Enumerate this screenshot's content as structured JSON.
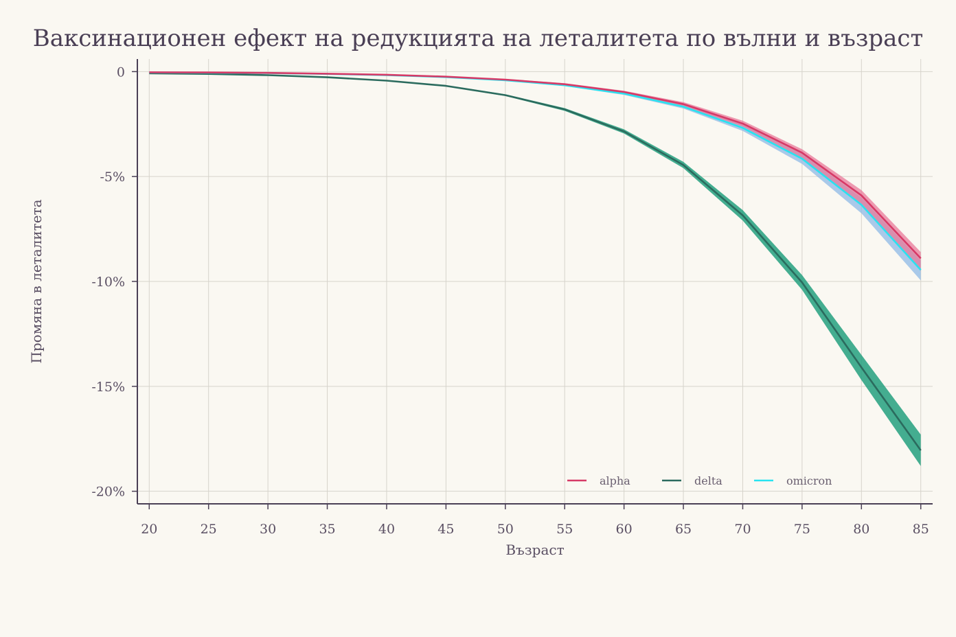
{
  "colors": {
    "background": "#faf8f2",
    "grid": "#d6d3cb",
    "axis": "#4a3f55",
    "alpha_line": "#d63a67",
    "alpha_band": "#e8799a",
    "delta_line": "#2b6b5e",
    "delta_band": "#23a07f",
    "omicron_line": "#27e3f0",
    "omicron_band": "#8db9e6"
  },
  "chart_data": {
    "type": "line",
    "title": "Ваксинационен ефект на редукцията на леталитета по вълни и възраст",
    "xlabel": "Възраст",
    "ylabel": "Промяна в леталитета",
    "x": [
      20,
      25,
      30,
      35,
      40,
      45,
      50,
      55,
      60,
      65,
      70,
      75,
      80,
      85
    ],
    "xlim": [
      19,
      86
    ],
    "ylim": [
      -20.6,
      0.6
    ],
    "x_ticks": [
      20,
      25,
      30,
      35,
      40,
      45,
      50,
      55,
      60,
      65,
      70,
      75,
      80,
      85
    ],
    "x_tick_labels": [
      "20",
      "25",
      "30",
      "35",
      "40",
      "45",
      "50",
      "55",
      "60",
      "65",
      "70",
      "75",
      "80",
      "85"
    ],
    "y_ticks": [
      0,
      -5,
      -10,
      -15,
      -20
    ],
    "y_tick_labels": [
      "0",
      "-5%",
      "-10%",
      "-15%",
      "-20%"
    ],
    "grid": true,
    "legend_position": "bottom-right",
    "series": [
      {
        "name": "alpha",
        "color": "#d63a67",
        "band_color": "#e8799a",
        "values": [
          -0.03,
          -0.04,
          -0.06,
          -0.1,
          -0.15,
          -0.24,
          -0.38,
          -0.6,
          -0.97,
          -1.55,
          -2.48,
          -3.87,
          -5.9,
          -8.9
        ],
        "lower": [
          -0.04,
          -0.05,
          -0.07,
          -0.11,
          -0.17,
          -0.26,
          -0.41,
          -0.65,
          -1.03,
          -1.65,
          -2.62,
          -4.12,
          -6.3,
          -9.5
        ],
        "upper": [
          -0.02,
          -0.03,
          -0.05,
          -0.09,
          -0.13,
          -0.22,
          -0.35,
          -0.55,
          -0.91,
          -1.45,
          -2.34,
          -3.7,
          -5.65,
          -8.6
        ]
      },
      {
        "name": "delta",
        "color": "#2b6b5e",
        "band_color": "#23a07f",
        "values": [
          -0.08,
          -0.11,
          -0.17,
          -0.27,
          -0.43,
          -0.68,
          -1.12,
          -1.8,
          -2.85,
          -4.45,
          -6.85,
          -10.05,
          -14.1,
          -18.05
        ],
        "lower": [
          -0.09,
          -0.12,
          -0.18,
          -0.28,
          -0.45,
          -0.71,
          -1.16,
          -1.87,
          -2.95,
          -4.6,
          -7.1,
          -10.4,
          -14.7,
          -18.8
        ],
        "upper": [
          -0.07,
          -0.1,
          -0.16,
          -0.26,
          -0.41,
          -0.65,
          -1.08,
          -1.74,
          -2.75,
          -4.3,
          -6.6,
          -9.7,
          -13.5,
          -17.3
        ]
      },
      {
        "name": "omicron",
        "color": "#27e3f0",
        "band_color": "#8db9e6",
        "values": [
          -0.04,
          -0.05,
          -0.07,
          -0.11,
          -0.17,
          -0.26,
          -0.41,
          -0.65,
          -1.05,
          -1.67,
          -2.68,
          -4.15,
          -6.35,
          -9.45
        ],
        "lower": [
          -0.05,
          -0.06,
          -0.08,
          -0.12,
          -0.18,
          -0.28,
          -0.44,
          -0.69,
          -1.11,
          -1.76,
          -2.83,
          -4.4,
          -6.75,
          -9.95
        ],
        "upper": [
          -0.03,
          -0.04,
          -0.06,
          -0.1,
          -0.16,
          -0.24,
          -0.38,
          -0.61,
          -0.99,
          -1.58,
          -2.53,
          -3.92,
          -6.0,
          -9.0
        ]
      }
    ]
  }
}
